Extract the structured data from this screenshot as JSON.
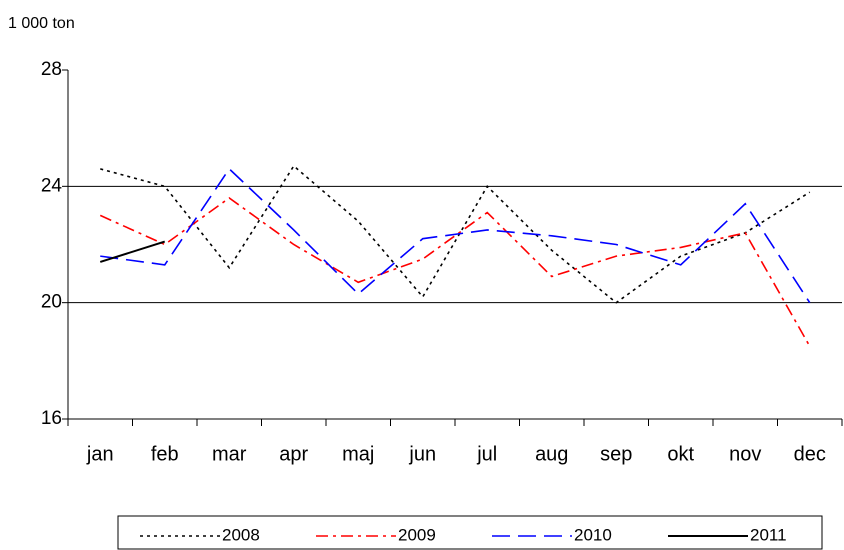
{
  "chart_data": {
    "type": "line",
    "y_label": "1 000 ton",
    "categories": [
      "jan",
      "feb",
      "mar",
      "apr",
      "maj",
      "jun",
      "jul",
      "aug",
      "sep",
      "okt",
      "nov",
      "dec"
    ],
    "series": [
      {
        "name": "2008",
        "color": "#000000",
        "style": "dotted",
        "values": [
          24.6,
          24.0,
          21.2,
          24.7,
          22.8,
          20.2,
          24.0,
          21.8,
          20.0,
          21.6,
          22.4,
          23.8
        ]
      },
      {
        "name": "2009",
        "color": "#ff0000",
        "style": "dashdot",
        "values": [
          23.0,
          22.0,
          23.6,
          22.0,
          20.7,
          21.5,
          23.1,
          20.9,
          21.6,
          21.9,
          22.4,
          18.5
        ]
      },
      {
        "name": "2010",
        "color": "#0000ff",
        "style": "dashed",
        "values": [
          21.6,
          21.3,
          24.6,
          22.5,
          20.3,
          22.2,
          22.5,
          22.3,
          22.0,
          21.3,
          23.4,
          20.0
        ]
      },
      {
        "name": "2011",
        "color": "#000000",
        "style": "solid",
        "values": [
          21.4,
          22.1,
          null,
          null,
          null,
          null,
          null,
          null,
          null,
          null,
          null,
          null
        ]
      }
    ],
    "ylim": [
      16,
      28
    ],
    "yticks": [
      16,
      20,
      24,
      28
    ],
    "grid": true,
    "legend": "bottom"
  }
}
